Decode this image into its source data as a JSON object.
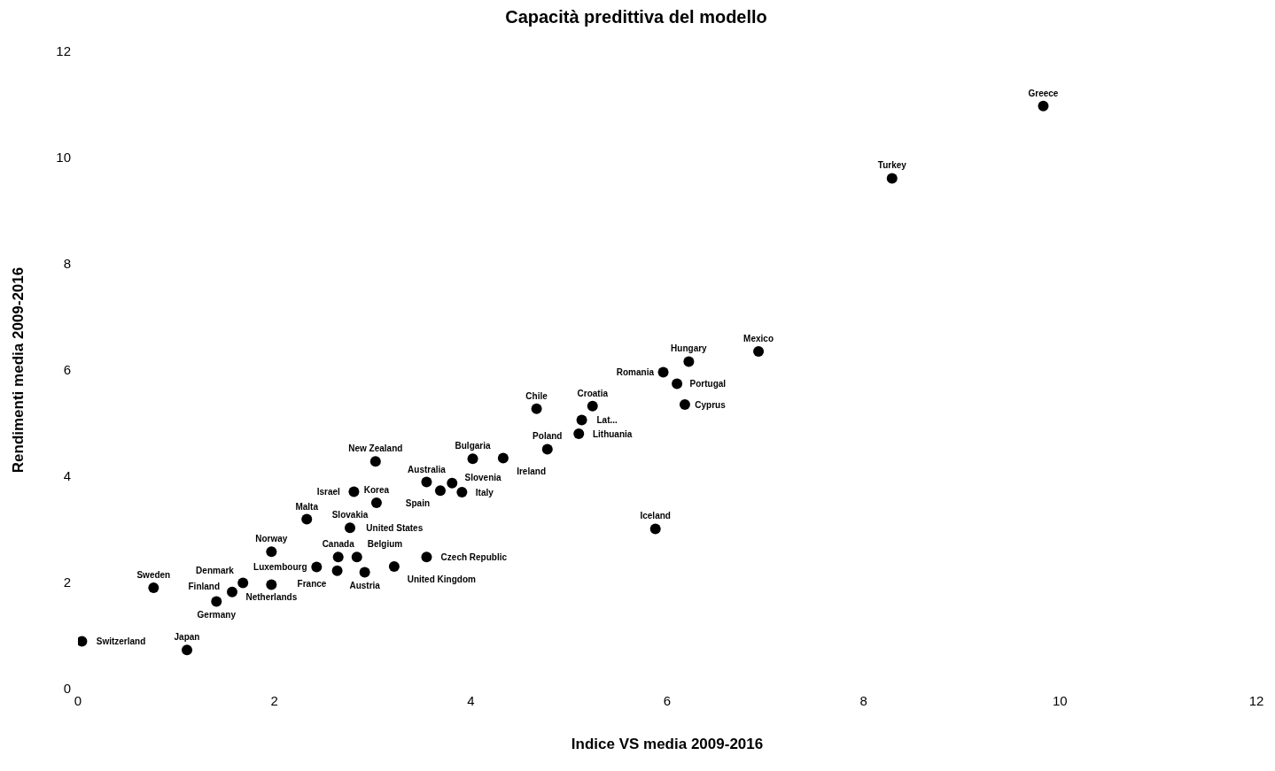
{
  "chart_data": {
    "type": "scatter",
    "title": "Capacità predittiva del modello",
    "xlabel": "Indice VS media 2009-2016",
    "ylabel": "Rendimenti media 2009-2016",
    "xlim": [
      0,
      12
    ],
    "xticks": [
      0,
      2,
      4,
      6,
      8,
      10,
      12
    ],
    "ylim": [
      0,
      12
    ],
    "yticks": [
      0,
      2,
      4,
      6,
      8,
      10,
      12
    ],
    "grid": false,
    "legend": false,
    "marker": "circle",
    "series": [
      {
        "color": "#000000",
        "x": [
          0.04,
          1.11,
          0.77,
          1.41,
          1.57,
          1.68,
          1.97,
          1.97,
          2.43,
          2.33,
          2.64,
          2.65,
          2.84,
          2.92,
          3.22,
          3.55,
          2.77,
          3.04,
          2.81,
          3.03,
          3.55,
          3.69,
          3.81,
          3.91,
          4.02,
          4.33,
          4.78,
          4.67,
          5.13,
          5.1,
          5.24,
          5.88,
          6.18,
          5.96,
          6.22,
          6.1,
          6.93,
          8.29,
          9.83
        ],
        "values": [
          0.89,
          0.73,
          1.9,
          1.64,
          1.82,
          1.99,
          1.96,
          2.58,
          2.29,
          3.19,
          2.22,
          2.48,
          2.48,
          2.19,
          2.3,
          2.48,
          3.03,
          3.5,
          3.71,
          4.28,
          3.89,
          3.73,
          3.87,
          3.7,
          4.33,
          4.34,
          4.51,
          5.27,
          5.06,
          4.8,
          5.32,
          3.01,
          5.35,
          5.96,
          6.16,
          5.74,
          6.35,
          9.61,
          10.97
        ]
      }
    ],
    "annotations": [
      {
        "text": "Switzerland",
        "x": 0.04,
        "y": 0.89
      },
      {
        "text": "Japan",
        "x": 1.11,
        "y": 0.73
      },
      {
        "text": "Sweden",
        "x": 0.77,
        "y": 1.9
      },
      {
        "text": "Germany",
        "x": 1.41,
        "y": 1.64
      },
      {
        "text": "Finland",
        "x": 1.57,
        "y": 1.82
      },
      {
        "text": "Denmark",
        "x": 1.68,
        "y": 1.99
      },
      {
        "text": "Netherlands",
        "x": 1.97,
        "y": 1.96
      },
      {
        "text": "Norway",
        "x": 1.97,
        "y": 2.58
      },
      {
        "text": "Luxembourg",
        "x": 2.43,
        "y": 2.29
      },
      {
        "text": "Malta",
        "x": 2.33,
        "y": 3.19
      },
      {
        "text": "France",
        "x": 2.64,
        "y": 2.22
      },
      {
        "text": "Canada",
        "x": 2.65,
        "y": 2.48
      },
      {
        "text": "Belgium",
        "x": 2.84,
        "y": 2.48
      },
      {
        "text": "Austria",
        "x": 2.92,
        "y": 2.19
      },
      {
        "text": "United Kingdom",
        "x": 3.22,
        "y": 2.3
      },
      {
        "text": "Czech Republic",
        "x": 3.55,
        "y": 2.48
      },
      {
        "text": "Slovakia",
        "x": 2.77,
        "y": 3.03
      },
      {
        "text": "United States",
        "x": 2.77,
        "y": 3.03
      },
      {
        "text": "Korea",
        "x": 3.04,
        "y": 3.5
      },
      {
        "text": "Israel",
        "x": 2.81,
        "y": 3.71
      },
      {
        "text": "New Zealand",
        "x": 3.03,
        "y": 4.28
      },
      {
        "text": "Australia",
        "x": 3.55,
        "y": 3.89
      },
      {
        "text": "Spain",
        "x": 3.69,
        "y": 3.73
      },
      {
        "text": "Slovenia",
        "x": 3.81,
        "y": 3.87
      },
      {
        "text": "Italy",
        "x": 3.91,
        "y": 3.7
      },
      {
        "text": "Bulgaria",
        "x": 4.02,
        "y": 4.33
      },
      {
        "text": "Ireland",
        "x": 4.33,
        "y": 4.34
      },
      {
        "text": "Poland",
        "x": 4.78,
        "y": 4.51
      },
      {
        "text": "Chile",
        "x": 4.67,
        "y": 5.27
      },
      {
        "text": "Lat...",
        "x": 5.13,
        "y": 5.06
      },
      {
        "text": "Lithuania",
        "x": 5.1,
        "y": 4.8
      },
      {
        "text": "Croatia",
        "x": 5.24,
        "y": 5.32
      },
      {
        "text": "Iceland",
        "x": 5.88,
        "y": 3.01
      },
      {
        "text": "Cyprus",
        "x": 6.18,
        "y": 5.35
      },
      {
        "text": "Romania",
        "x": 5.96,
        "y": 5.96
      },
      {
        "text": "Hungary",
        "x": 6.22,
        "y": 6.16
      },
      {
        "text": "Portugal",
        "x": 6.1,
        "y": 5.74
      },
      {
        "text": "Mexico",
        "x": 6.93,
        "y": 6.35
      },
      {
        "text": "Turkey",
        "x": 8.29,
        "y": 9.61
      },
      {
        "text": "Greece",
        "x": 9.83,
        "y": 10.97
      }
    ]
  }
}
